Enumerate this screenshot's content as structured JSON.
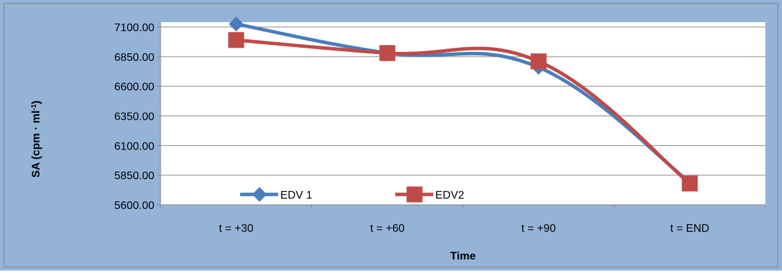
{
  "chart_data": {
    "type": "line",
    "title": "",
    "xlabel": "Time",
    "ylabel": "SA (cpm · ml",
    "ylabel_superscript": "-1",
    "ylabel_suffix": ")",
    "categories": [
      "t = +30",
      "t = +60",
      "t = +90",
      "t = END"
    ],
    "ylim": [
      5600,
      7100
    ],
    "yticks": [
      "7100.00",
      "6850.00",
      "6600.00",
      "6350.00",
      "6100.00",
      "5850.00",
      "5600.00"
    ],
    "grid": true,
    "smooth": true,
    "legend_position": "bottom-left inside plot",
    "series": [
      {
        "name": "EDV 1",
        "values": [
          7125,
          6880,
          6760,
          5790
        ],
        "color": "#4a7ebb",
        "marker": "diamond"
      },
      {
        "name": "EDV2",
        "values": [
          6990,
          6880,
          6810,
          5780
        ],
        "color": "#be4b48",
        "marker": "square"
      }
    ],
    "colors": {
      "outer_background": "#95b3d7",
      "plot_background": "#ffffff",
      "gridline": "#868686",
      "axis": "#868686"
    }
  }
}
